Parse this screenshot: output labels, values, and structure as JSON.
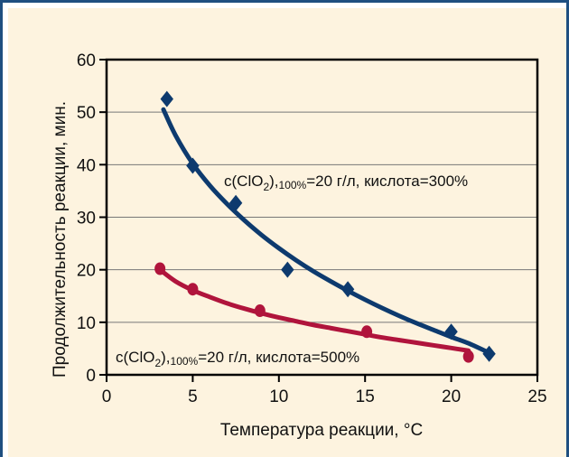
{
  "chart_data": {
    "type": "scatter",
    "title": "",
    "xlabel": "Температура реакции, °C",
    "ylabel": "Продолжительность реакции, мин.",
    "xlim": [
      0,
      25
    ],
    "ylim": [
      0,
      60
    ],
    "xticks": [
      "0",
      "5",
      "10",
      "15",
      "20",
      "25"
    ],
    "yticks": [
      "0",
      "10",
      "20",
      "30",
      "40",
      "50",
      "60"
    ],
    "grid": "horizontal",
    "series": [
      {
        "marker": "diamond",
        "color": "#0d3a6e",
        "x": [
          3.5,
          5,
          7.5,
          10.5,
          14,
          20,
          22.2
        ],
        "y": [
          52.5,
          39.8,
          32.7,
          20.0,
          16.3,
          8.2,
          4.0
        ],
        "fit_x": [
          3.3,
          4,
          5,
          6,
          7,
          8,
          9,
          10,
          11,
          12,
          13,
          14,
          15,
          16,
          17,
          18,
          19,
          20,
          21,
          22.2
        ],
        "fit_y": [
          50.5,
          45.6,
          40.2,
          36.0,
          32.5,
          29.4,
          26.6,
          24.1,
          21.8,
          19.7,
          17.8,
          16.0,
          14.3,
          12.7,
          11.2,
          9.8,
          8.5,
          7.2,
          6.0,
          4.2
        ]
      },
      {
        "marker": "circle",
        "color": "#b0143c",
        "x": [
          3.1,
          5,
          8.9,
          15.1,
          21
        ],
        "y": [
          20.2,
          16.3,
          12.2,
          8.2,
          3.5
        ],
        "fit_x": [
          3.1,
          4,
          5,
          6,
          7,
          8,
          9,
          10,
          11,
          12,
          13,
          14,
          15,
          16,
          17,
          18,
          19,
          20,
          21
        ],
        "fit_y": [
          20.0,
          17.8,
          16.1,
          14.8,
          13.6,
          12.6,
          11.7,
          10.9,
          10.2,
          9.5,
          8.9,
          8.3,
          7.7,
          7.1,
          6.6,
          6.1,
          5.6,
          5.1,
          4.6
        ]
      }
    ],
    "annotations": [
      {
        "text_before": "c(ClO",
        "subscript": "2",
        "text_mid": "),",
        "small": "100%",
        "text_after": "=20 г/л, кислота=300%"
      },
      {
        "text_before": "c(ClO",
        "subscript": "2",
        "text_mid": "),",
        "small": "100%",
        "text_after": "=20 г/л, кислота=500%"
      }
    ]
  }
}
